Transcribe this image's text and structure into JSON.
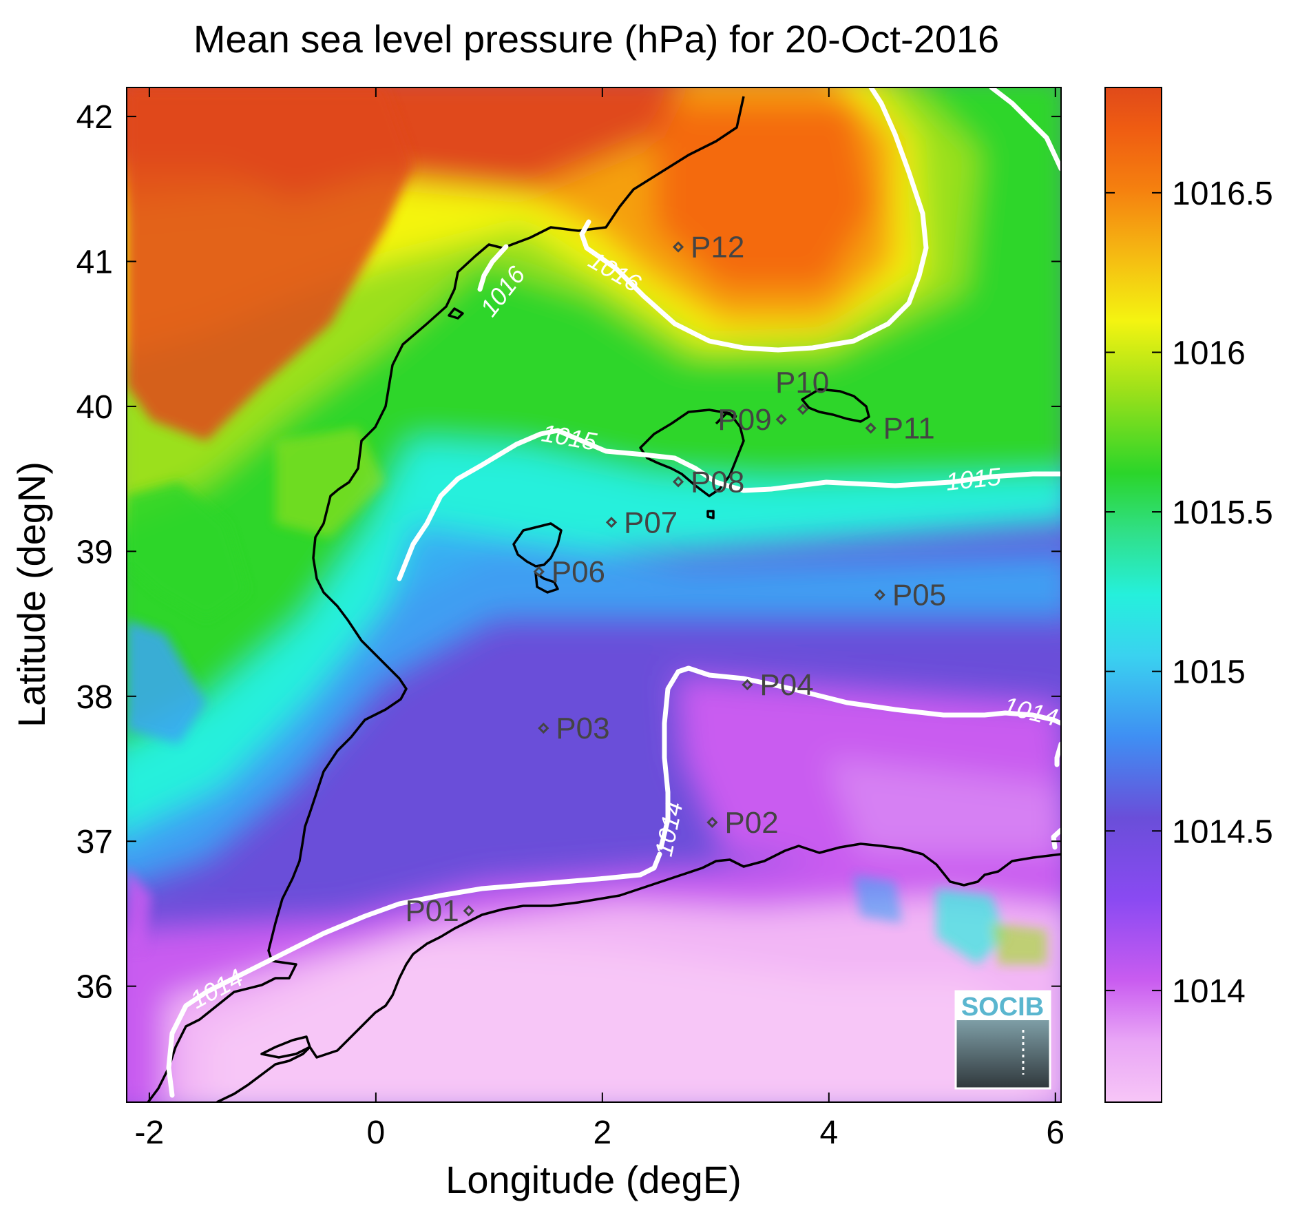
{
  "title": "Mean sea level pressure (hPa) for 20-Oct-2016",
  "axes": {
    "xlabel": "Longitude (degE)",
    "ylabel": "Latitude (degN)",
    "x_ticks": [
      "-2",
      "0",
      "2",
      "4",
      "6"
    ],
    "y_ticks": [
      "36",
      "37",
      "38",
      "39",
      "40",
      "41",
      "42"
    ]
  },
  "colorbar": {
    "ticks": [
      "1014",
      "1014.5",
      "1015",
      "1015.5",
      "1016",
      "1016.5"
    ]
  },
  "logo": {
    "text": "SOCIB"
  },
  "chart_data": {
    "type": "heatmap",
    "variable": "Mean sea level pressure",
    "units": "hPa",
    "date": "20-Oct-2016",
    "xlim": [
      -2.2,
      6.05
    ],
    "ylim": [
      35.2,
      42.2
    ],
    "color_range": [
      1013.65,
      1016.83
    ],
    "colormap": [
      "#f7c6f7",
      "#c95cf0",
      "#8a4af2",
      "#6a4ed9",
      "#3aa6f5",
      "#24f0e0",
      "#34dc70",
      "#2fd62a",
      "#9be01a",
      "#f4f411",
      "#f59a10",
      "#f46a0e",
      "#e04a1a"
    ],
    "contour_levels": [
      1014,
      1015,
      1016
    ],
    "contour_labels": [
      "1014",
      "1014",
      "1014",
      "1015",
      "1015",
      "1016",
      "1016"
    ],
    "points": [
      {
        "name": "P01",
        "lon": 0.82,
        "lat": 36.52
      },
      {
        "name": "P02",
        "lon": 2.97,
        "lat": 37.13
      },
      {
        "name": "P03",
        "lon": 1.48,
        "lat": 37.78
      },
      {
        "name": "P04",
        "lon": 3.28,
        "lat": 38.08
      },
      {
        "name": "P05",
        "lon": 4.45,
        "lat": 38.7
      },
      {
        "name": "P06",
        "lon": 1.44,
        "lat": 38.86
      },
      {
        "name": "P07",
        "lon": 2.08,
        "lat": 39.2
      },
      {
        "name": "P08",
        "lon": 2.67,
        "lat": 39.48
      },
      {
        "name": "P09",
        "lon": 3.58,
        "lat": 39.91
      },
      {
        "name": "P10",
        "lon": 3.77,
        "lat": 39.98
      },
      {
        "name": "P11",
        "lon": 4.37,
        "lat": 39.85
      },
      {
        "name": "P12",
        "lon": 2.67,
        "lat": 41.1
      }
    ]
  }
}
